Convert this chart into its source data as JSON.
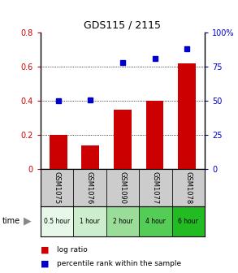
{
  "title": "GDS115 / 2115",
  "categories": [
    "GSM1075",
    "GSM1076",
    "GSM1090",
    "GSM1077",
    "GSM1078"
  ],
  "time_labels": [
    "0.5 hour",
    "1 hour",
    "2 hour",
    "4 hour",
    "6 hour"
  ],
  "log_ratio": [
    0.2,
    0.14,
    0.35,
    0.4,
    0.62
  ],
  "percentile_rank": [
    50,
    51,
    78,
    81,
    88
  ],
  "bar_color": "#cc0000",
  "dot_color": "#0000cc",
  "ylim_left": [
    0,
    0.8
  ],
  "ylim_right": [
    0,
    100
  ],
  "yticks_left": [
    0,
    0.2,
    0.4,
    0.6,
    0.8
  ],
  "yticks_right": [
    0,
    25,
    50,
    75,
    100
  ],
  "ytick_labels_right": [
    "0",
    "25",
    "50",
    "75",
    "100%"
  ],
  "time_colors": [
    "#e8f8e8",
    "#cceecc",
    "#99dd99",
    "#55cc55",
    "#22bb22"
  ],
  "sample_cell_color": "#cccccc",
  "bar_width": 0.55
}
